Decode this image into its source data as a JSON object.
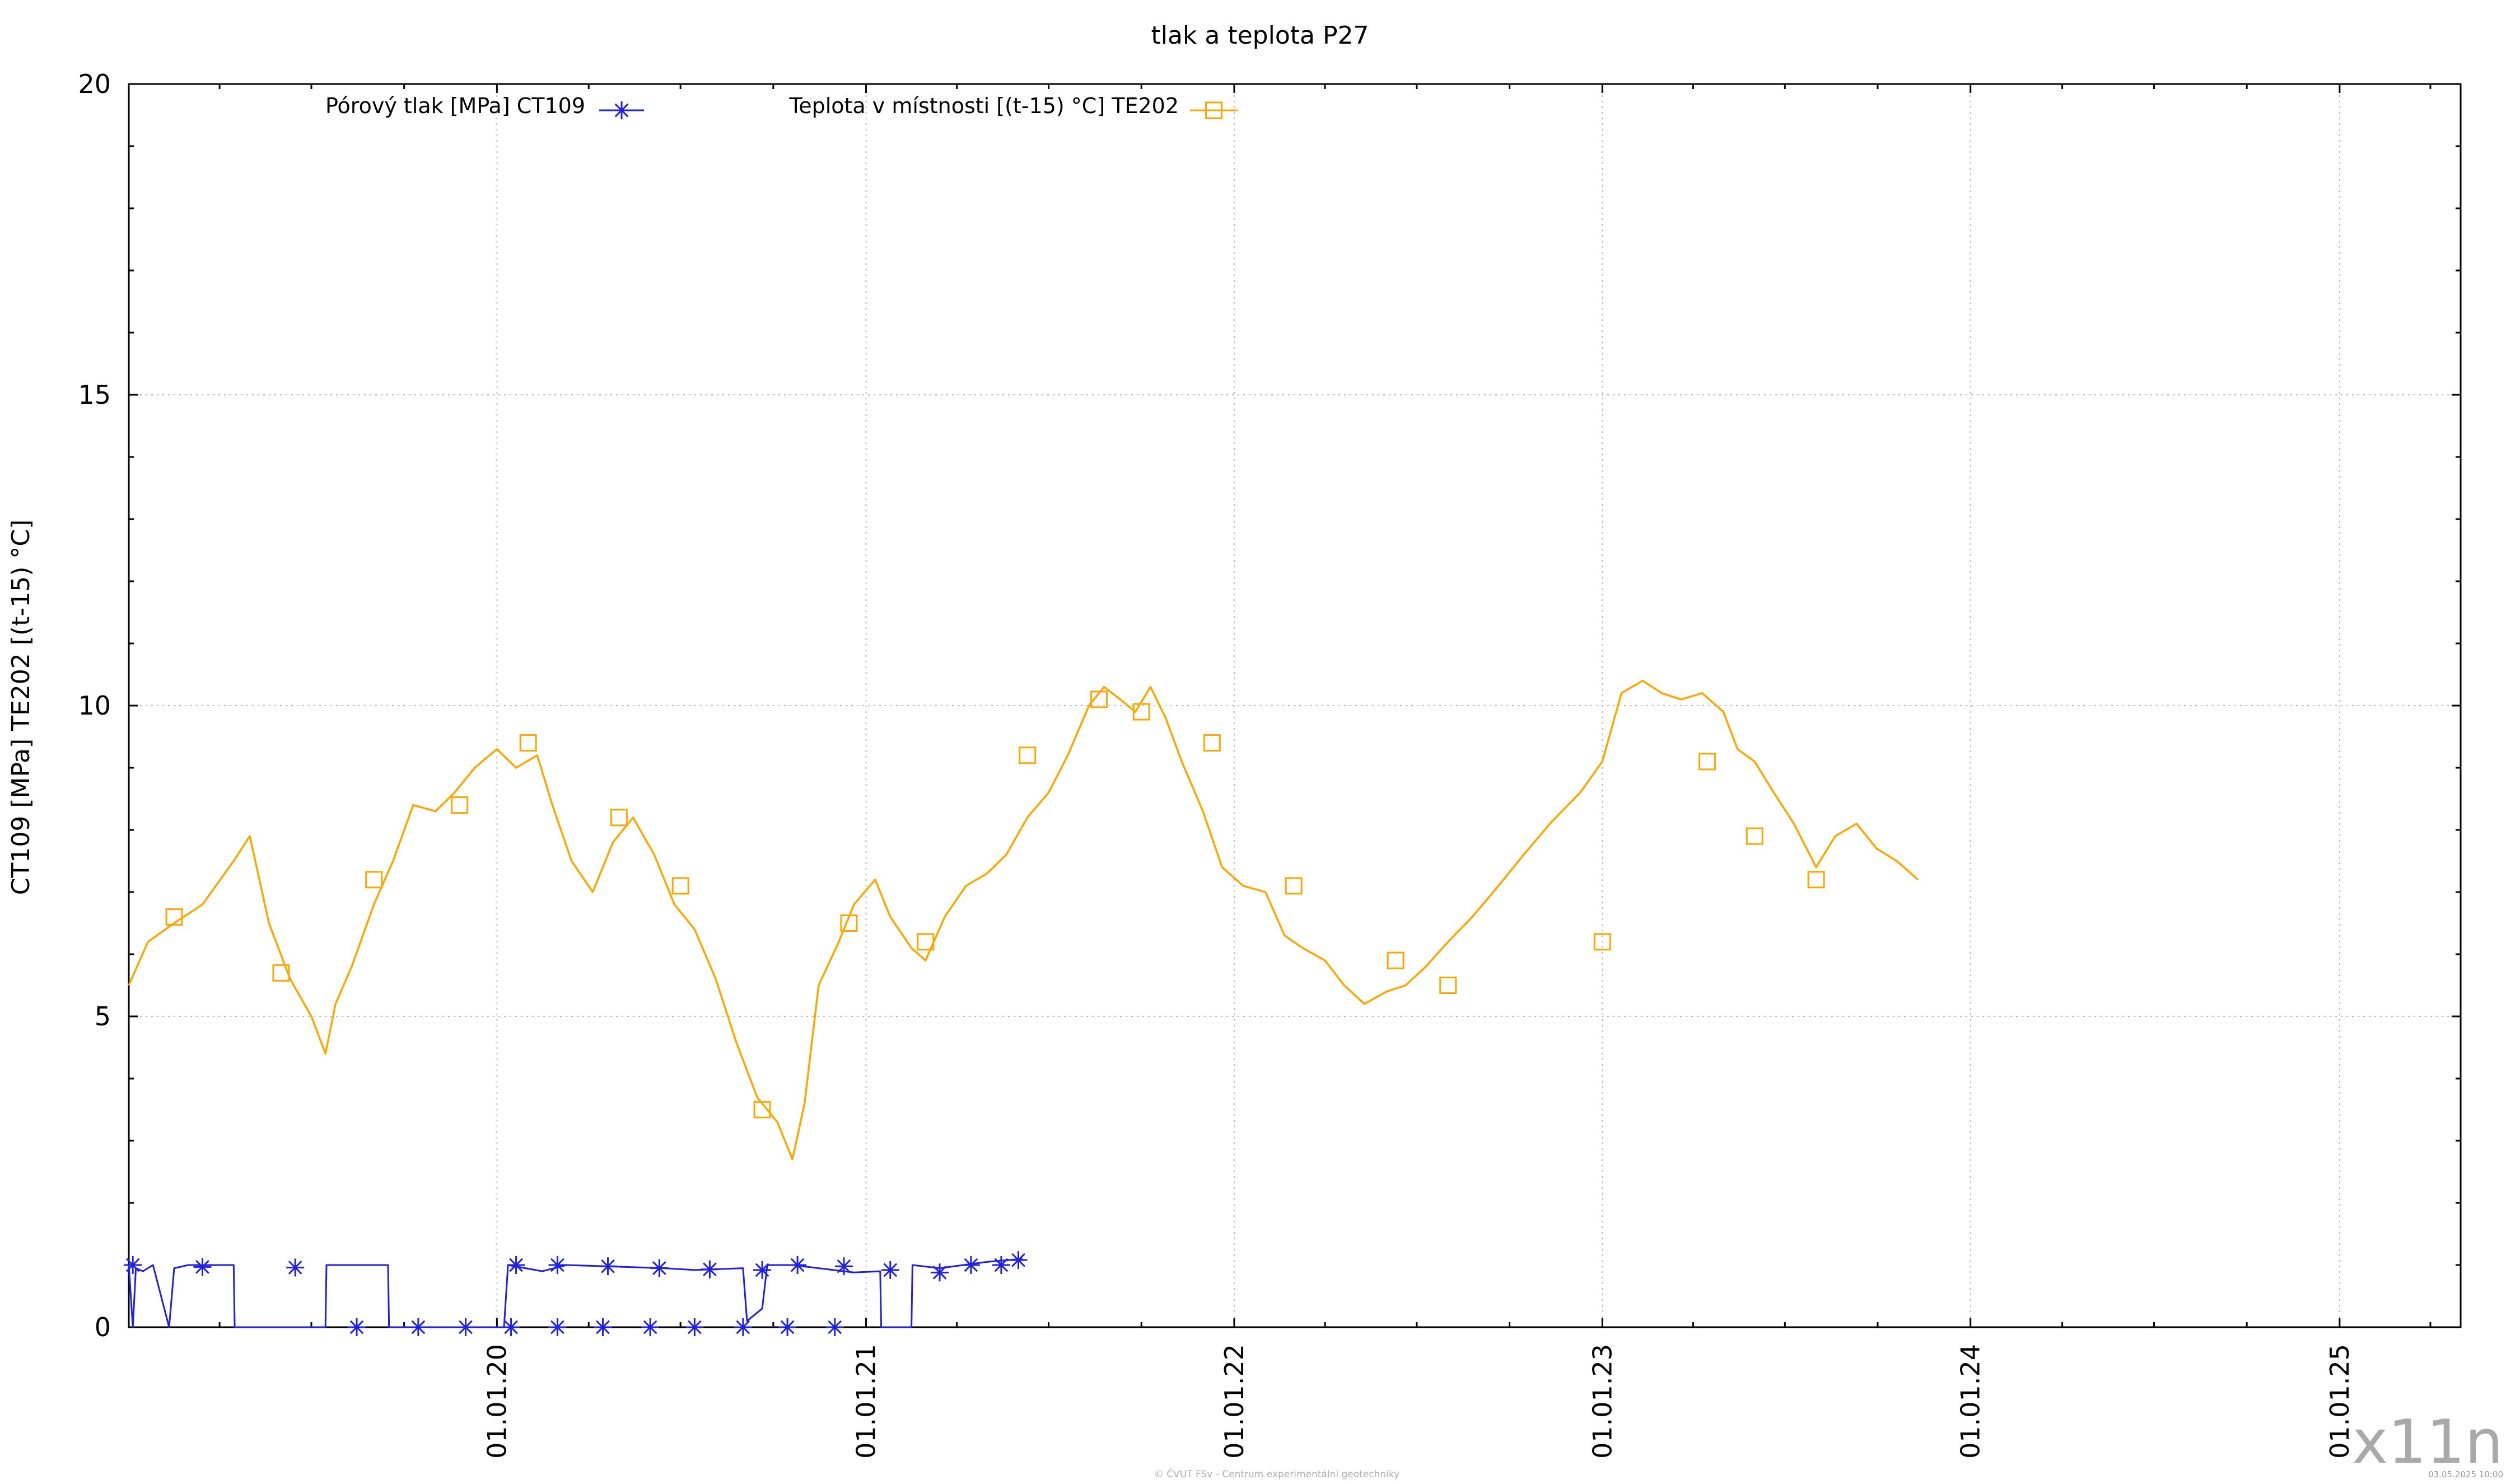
{
  "footer_text": "© ČVUT FSv - Centrum experimentální geotechniky",
  "timestamp": "03.05.2025 10:00",
  "watermark": "x11n",
  "chart_data": {
    "type": "line",
    "title": "tlak a teplota P27",
    "ylabel": "CT109 [MPa] TE202 [(t-15) °C]",
    "xlabel": "",
    "x_domain": [
      "2019-01-01",
      "2025-05-01"
    ],
    "ylim": [
      0,
      20
    ],
    "yticks": [
      {
        "value": 0,
        "label": "0"
      },
      {
        "value": 5,
        "label": "5"
      },
      {
        "value": 10,
        "label": "10"
      },
      {
        "value": 15,
        "label": "15"
      },
      {
        "value": 20,
        "label": "20"
      }
    ],
    "xticks": [
      {
        "date": "2020-01-01",
        "label": "01.01.20"
      },
      {
        "date": "2021-01-01",
        "label": "01.01.21"
      },
      {
        "date": "2022-01-01",
        "label": "01.01.22"
      },
      {
        "date": "2023-01-01",
        "label": "01.01.23"
      },
      {
        "date": "2024-01-01",
        "label": "01.01.24"
      },
      {
        "date": "2025-01-01",
        "label": "01.01.25"
      }
    ],
    "grid": true,
    "legend_position": "top",
    "series": [
      {
        "name": "Pórový tlak [MPa] CT109",
        "color": "#2020e0",
        "marker": "star",
        "points": [
          [
            "2019-01-01",
            1.0
          ],
          [
            "2019-01-05",
            0.0
          ],
          [
            "2019-01-08",
            0.95
          ],
          [
            "2019-01-15",
            0.9
          ],
          [
            "2019-01-25",
            1.0
          ],
          [
            "2019-02-10",
            0.0
          ],
          [
            "2019-02-15",
            0.95
          ],
          [
            "2019-03-01",
            1.0
          ],
          [
            "2019-04-15",
            1.0
          ],
          [
            "2019-04-16",
            0.0
          ],
          [
            "2019-07-15",
            0.0
          ],
          [
            "2019-07-16",
            1.0
          ],
          [
            "2019-09-15",
            1.0
          ],
          [
            "2019-09-16",
            0.0
          ],
          [
            "2020-01-08",
            0.0
          ],
          [
            "2020-01-12",
            1.0
          ],
          [
            "2020-02-15",
            0.9
          ],
          [
            "2020-03-10",
            1.0
          ],
          [
            "2020-06-15",
            0.95
          ],
          [
            "2020-07-15",
            0.92
          ],
          [
            "2020-09-01",
            0.95
          ],
          [
            "2020-09-05",
            0.1
          ],
          [
            "2020-09-20",
            0.3
          ],
          [
            "2020-09-25",
            1.0
          ],
          [
            "2020-10-20",
            1.0
          ],
          [
            "2020-12-20",
            0.88
          ],
          [
            "2021-01-15",
            0.9
          ],
          [
            "2021-01-16",
            0.0
          ],
          [
            "2021-02-15",
            0.0
          ],
          [
            "2021-02-16",
            1.0
          ],
          [
            "2021-03-15",
            0.95
          ],
          [
            "2021-05-01",
            1.05
          ],
          [
            "2021-06-05",
            1.1
          ]
        ],
        "marker_points": [
          [
            "2019-01-05",
            1.0
          ],
          [
            "2019-03-15",
            0.97
          ],
          [
            "2019-06-15",
            0.96
          ],
          [
            "2019-08-15",
            0.0
          ],
          [
            "2019-10-15",
            0.0
          ],
          [
            "2019-12-01",
            0.0
          ],
          [
            "2020-01-15",
            0.0
          ],
          [
            "2020-03-01",
            0.0
          ],
          [
            "2020-04-15",
            0.0
          ],
          [
            "2020-06-01",
            0.0
          ],
          [
            "2020-07-15",
            0.0
          ],
          [
            "2020-09-01",
            0.0
          ],
          [
            "2020-10-15",
            0.0
          ],
          [
            "2020-12-01",
            0.0
          ],
          [
            "2020-01-20",
            1.0
          ],
          [
            "2020-03-01",
            1.0
          ],
          [
            "2020-04-20",
            0.98
          ],
          [
            "2020-06-10",
            0.95
          ],
          [
            "2020-07-30",
            0.93
          ],
          [
            "2020-09-20",
            0.92
          ],
          [
            "2020-10-25",
            1.0
          ],
          [
            "2020-12-10",
            0.98
          ],
          [
            "2021-01-25",
            0.92
          ],
          [
            "2021-03-15",
            0.88
          ],
          [
            "2021-04-15",
            1.0
          ],
          [
            "2021-05-15",
            1.0
          ],
          [
            "2021-06-01",
            1.08
          ]
        ]
      },
      {
        "name": "Teplota v místnosti [(t-15) °C] TE202",
        "color": "#ffa500",
        "marker": "square",
        "points": [
          [
            "2019-01-01",
            5.5
          ],
          [
            "2019-01-20",
            6.2
          ],
          [
            "2019-02-15",
            6.5
          ],
          [
            "2019-03-15",
            6.8
          ],
          [
            "2019-04-15",
            7.5
          ],
          [
            "2019-05-01",
            7.9
          ],
          [
            "2019-05-20",
            6.5
          ],
          [
            "2019-06-10",
            5.6
          ],
          [
            "2019-07-01",
            5.0
          ],
          [
            "2019-07-15",
            4.4
          ],
          [
            "2019-07-25",
            5.2
          ],
          [
            "2019-08-10",
            5.8
          ],
          [
            "2019-09-01",
            6.8
          ],
          [
            "2019-09-20",
            7.5
          ],
          [
            "2019-10-10",
            8.4
          ],
          [
            "2019-11-01",
            8.3
          ],
          [
            "2019-11-20",
            8.6
          ],
          [
            "2019-12-10",
            9.0
          ],
          [
            "2020-01-01",
            9.3
          ],
          [
            "2020-01-20",
            9.0
          ],
          [
            "2020-02-10",
            9.2
          ],
          [
            "2020-02-25",
            8.4
          ],
          [
            "2020-03-15",
            7.5
          ],
          [
            "2020-04-05",
            7.0
          ],
          [
            "2020-04-25",
            7.8
          ],
          [
            "2020-05-15",
            8.2
          ],
          [
            "2020-06-05",
            7.6
          ],
          [
            "2020-06-25",
            6.8
          ],
          [
            "2020-07-15",
            6.4
          ],
          [
            "2020-08-05",
            5.6
          ],
          [
            "2020-08-25",
            4.6
          ],
          [
            "2020-09-15",
            3.7
          ],
          [
            "2020-10-05",
            3.3
          ],
          [
            "2020-10-20",
            2.7
          ],
          [
            "2020-11-01",
            3.6
          ],
          [
            "2020-11-15",
            5.5
          ],
          [
            "2020-12-05",
            6.2
          ],
          [
            "2020-12-20",
            6.8
          ],
          [
            "2021-01-10",
            7.2
          ],
          [
            "2021-01-25",
            6.6
          ],
          [
            "2021-02-15",
            6.1
          ],
          [
            "2021-03-01",
            5.9
          ],
          [
            "2021-03-20",
            6.6
          ],
          [
            "2021-04-10",
            7.1
          ],
          [
            "2021-05-01",
            7.3
          ],
          [
            "2021-05-20",
            7.6
          ],
          [
            "2021-06-10",
            8.2
          ],
          [
            "2021-07-01",
            8.6
          ],
          [
            "2021-07-20",
            9.2
          ],
          [
            "2021-08-10",
            10.0
          ],
          [
            "2021-08-25",
            10.3
          ],
          [
            "2021-09-10",
            10.1
          ],
          [
            "2021-09-25",
            9.9
          ],
          [
            "2021-10-10",
            10.3
          ],
          [
            "2021-10-25",
            9.8
          ],
          [
            "2021-11-10",
            9.1
          ],
          [
            "2021-12-01",
            8.3
          ],
          [
            "2021-12-20",
            7.4
          ],
          [
            "2022-01-10",
            7.1
          ],
          [
            "2022-02-01",
            7.0
          ],
          [
            "2022-02-20",
            6.3
          ],
          [
            "2022-03-10",
            6.1
          ],
          [
            "2022-04-01",
            5.9
          ],
          [
            "2022-04-20",
            5.5
          ],
          [
            "2022-05-10",
            5.2
          ],
          [
            "2022-06-01",
            5.4
          ],
          [
            "2022-06-20",
            5.5
          ],
          [
            "2022-07-10",
            5.8
          ],
          [
            "2022-08-01",
            6.2
          ],
          [
            "2022-08-25",
            6.6
          ],
          [
            "2022-09-20",
            7.1
          ],
          [
            "2022-10-15",
            7.6
          ],
          [
            "2022-11-10",
            8.1
          ],
          [
            "2022-12-10",
            8.6
          ],
          [
            "2023-01-01",
            9.1
          ],
          [
            "2023-01-20",
            10.2
          ],
          [
            "2023-02-10",
            10.4
          ],
          [
            "2023-03-01",
            10.2
          ],
          [
            "2023-03-20",
            10.1
          ],
          [
            "2023-04-10",
            10.2
          ],
          [
            "2023-05-01",
            9.9
          ],
          [
            "2023-05-15",
            9.3
          ],
          [
            "2023-06-01",
            9.1
          ],
          [
            "2023-06-20",
            8.6
          ],
          [
            "2023-07-10",
            8.1
          ],
          [
            "2023-08-01",
            7.4
          ],
          [
            "2023-08-20",
            7.9
          ],
          [
            "2023-09-10",
            8.1
          ],
          [
            "2023-09-30",
            7.7
          ],
          [
            "2023-10-20",
            7.5
          ],
          [
            "2023-11-10",
            7.2
          ]
        ],
        "marker_points": [
          [
            "2019-02-15",
            6.6
          ],
          [
            "2019-06-01",
            5.7
          ],
          [
            "2019-09-01",
            7.2
          ],
          [
            "2019-11-25",
            8.4
          ],
          [
            "2020-02-01",
            9.4
          ],
          [
            "2020-05-01",
            8.2
          ],
          [
            "2020-07-01",
            7.1
          ],
          [
            "2020-09-20",
            3.5
          ],
          [
            "2020-12-15",
            6.5
          ],
          [
            "2021-03-01",
            6.2
          ],
          [
            "2021-06-10",
            9.2
          ],
          [
            "2021-08-20",
            10.1
          ],
          [
            "2021-10-01",
            9.9
          ],
          [
            "2021-12-10",
            9.4
          ],
          [
            "2022-03-01",
            7.1
          ],
          [
            "2022-06-10",
            5.9
          ],
          [
            "2022-08-01",
            5.5
          ],
          [
            "2023-01-01",
            6.2
          ],
          [
            "2023-04-15",
            9.1
          ],
          [
            "2023-06-01",
            7.9
          ],
          [
            "2023-08-01",
            7.2
          ]
        ]
      }
    ]
  }
}
